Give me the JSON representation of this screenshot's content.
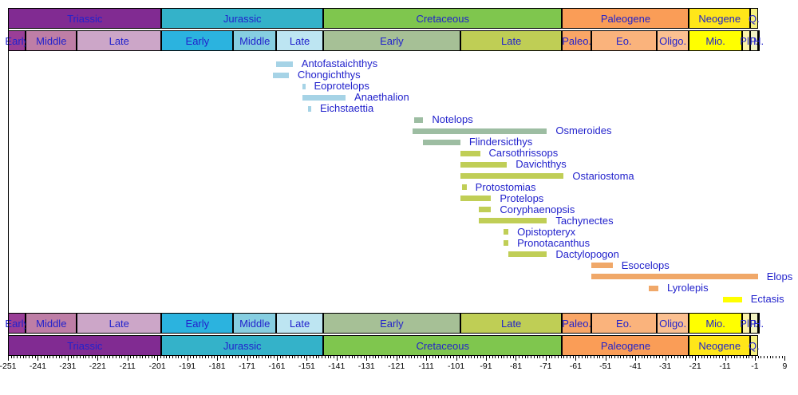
{
  "chart_data": {
    "type": "bar",
    "variant": "horizontal geologic fossil-range timeline",
    "title": "",
    "unit": "Ma (millions of years; negative = before present)",
    "axis": {
      "min": -251,
      "max": 9,
      "major_tick_step": 10,
      "minor_tick_step": 1,
      "tick_labels": [
        "-251",
        "-241",
        "-231",
        "-221",
        "-211",
        "-201",
        "-191",
        "-181",
        "-171",
        "-161",
        "-151",
        "-141",
        "-131",
        "-121",
        "-111",
        "-101",
        "-91",
        "-81",
        "-71",
        "-61",
        "-51",
        "-41",
        "-31",
        "-21",
        "-11",
        "-1",
        "9"
      ]
    },
    "periods": [
      {
        "label": "Triassic",
        "start": -251,
        "end": -199.6,
        "color": "#812B92"
      },
      {
        "label": "Jurassic",
        "start": -199.6,
        "end": -145.5,
        "color": "#34B2C9"
      },
      {
        "label": "Cretaceous",
        "start": -145.5,
        "end": -65.5,
        "color": "#7FC64E"
      },
      {
        "label": "Paleogene",
        "start": -65.5,
        "end": -23.03,
        "color": "#FA9D57"
      },
      {
        "label": "Neogene",
        "start": -23.03,
        "end": -2.588,
        "color": "#FFE619"
      },
      {
        "label": "Q.",
        "start": -2.588,
        "end": 0,
        "color": "#F6F07F"
      }
    ],
    "epochs": [
      {
        "label": "Early",
        "start": -251,
        "end": -245,
        "color": "#9A3E97"
      },
      {
        "label": "Middle",
        "start": -245,
        "end": -228,
        "color": "#BE7EA6"
      },
      {
        "label": "Late",
        "start": -228,
        "end": -199.6,
        "color": "#CCA6C8"
      },
      {
        "label": "Early",
        "start": -199.6,
        "end": -175.6,
        "color": "#2BB3DF"
      },
      {
        "label": "Middle",
        "start": -175.6,
        "end": -161.2,
        "color": "#86CEE1"
      },
      {
        "label": "Late",
        "start": -161.2,
        "end": -145.5,
        "color": "#BDE5F2"
      },
      {
        "label": "Early",
        "start": -145.5,
        "end": -99.6,
        "color": "#A6C096"
      },
      {
        "label": "Late",
        "start": -99.6,
        "end": -65.5,
        "color": "#BFCE55"
      },
      {
        "label": "Paleo.",
        "start": -65.5,
        "end": -55.8,
        "color": "#F9A666"
      },
      {
        "label": "Eo.",
        "start": -55.8,
        "end": -33.9,
        "color": "#FAB37C"
      },
      {
        "label": "Oligo.",
        "start": -33.9,
        "end": -23.03,
        "color": "#FBC091"
      },
      {
        "label": "Mio.",
        "start": -23.03,
        "end": -5.332,
        "color": "#FFFF00"
      },
      {
        "label": "Pl.",
        "start": -5.332,
        "end": -2.588,
        "color": "#FCF2A8"
      },
      {
        "label": "P.",
        "start": -2.588,
        "end": -0.0117,
        "color": "#F2F2C2"
      },
      {
        "label": "H.",
        "start": -0.0117,
        "end": 0,
        "color": "#FDFDF0"
      }
    ],
    "taxa": [
      {
        "name": "Antofastaichthys",
        "start": -161.2,
        "end": -155.7,
        "color": "#A6D3E6"
      },
      {
        "name": "Chongichthys",
        "start": -162.3,
        "end": -157.0,
        "color": "#A6D3E6"
      },
      {
        "name": "Eoprotelops",
        "start": -152.5,
        "end": -151.5,
        "color": "#A6D3E6"
      },
      {
        "name": "Anaethalion",
        "start": -152.5,
        "end": -138.0,
        "color": "#A6D3E6"
      },
      {
        "name": "Eichstaettia",
        "start": -150.5,
        "end": -149.5,
        "color": "#A6D3E6"
      },
      {
        "name": "Notelops",
        "start": -115.0,
        "end": -112.0,
        "color": "#9DBDA2"
      },
      {
        "name": "Osmeroides",
        "start": -115.5,
        "end": -70.6,
        "color": "#9DBDA2"
      },
      {
        "name": "Flindersicthys",
        "start": -112.0,
        "end": -99.6,
        "color": "#9DBDA2"
      },
      {
        "name": "Carsothrissops",
        "start": -99.6,
        "end": -93.0,
        "color": "#C0CE56"
      },
      {
        "name": "Davichthys",
        "start": -99.6,
        "end": -84.0,
        "color": "#C0CE56"
      },
      {
        "name": "Ostariostoma",
        "start": -99.6,
        "end": -65.0,
        "color": "#C0CE56"
      },
      {
        "name": "Protostomias",
        "start": -99.0,
        "end": -97.5,
        "color": "#C0CE56"
      },
      {
        "name": "Protelops",
        "start": -99.6,
        "end": -89.3,
        "color": "#C0CE56"
      },
      {
        "name": "Coryphaenopsis",
        "start": -93.5,
        "end": -89.3,
        "color": "#C0CE56"
      },
      {
        "name": "Tachynectes",
        "start": -93.5,
        "end": -70.6,
        "color": "#C0CE56"
      },
      {
        "name": "Opistopteryx",
        "start": -85.0,
        "end": -83.5,
        "color": "#C0CE56"
      },
      {
        "name": "Pronotacanthus",
        "start": -85.0,
        "end": -83.5,
        "color": "#C0CE56"
      },
      {
        "name": "Dactylopogon",
        "start": -83.5,
        "end": -70.6,
        "color": "#C0CE56"
      },
      {
        "name": "Esocelops",
        "start": -55.8,
        "end": -48.6,
        "color": "#F0A869"
      },
      {
        "name": "Elops",
        "start": -55.8,
        "end": 0,
        "color": "#F0A869"
      },
      {
        "name": "Lyrolepis",
        "start": -36.5,
        "end": -33.3,
        "color": "#F0A869"
      },
      {
        "name": "Ectasis",
        "start": -11.6,
        "end": -5.33,
        "color": "#FFFF00"
      }
    ],
    "style_colors": {
      "label_text": "#2222CC",
      "axis_text": "#000000",
      "background": "#FFFFFF"
    },
    "layout_hints": {
      "grid": false,
      "legend": "none",
      "header_bands": "periods+epochs mirrored top and bottom",
      "bar_label_position": "right of bar"
    }
  }
}
